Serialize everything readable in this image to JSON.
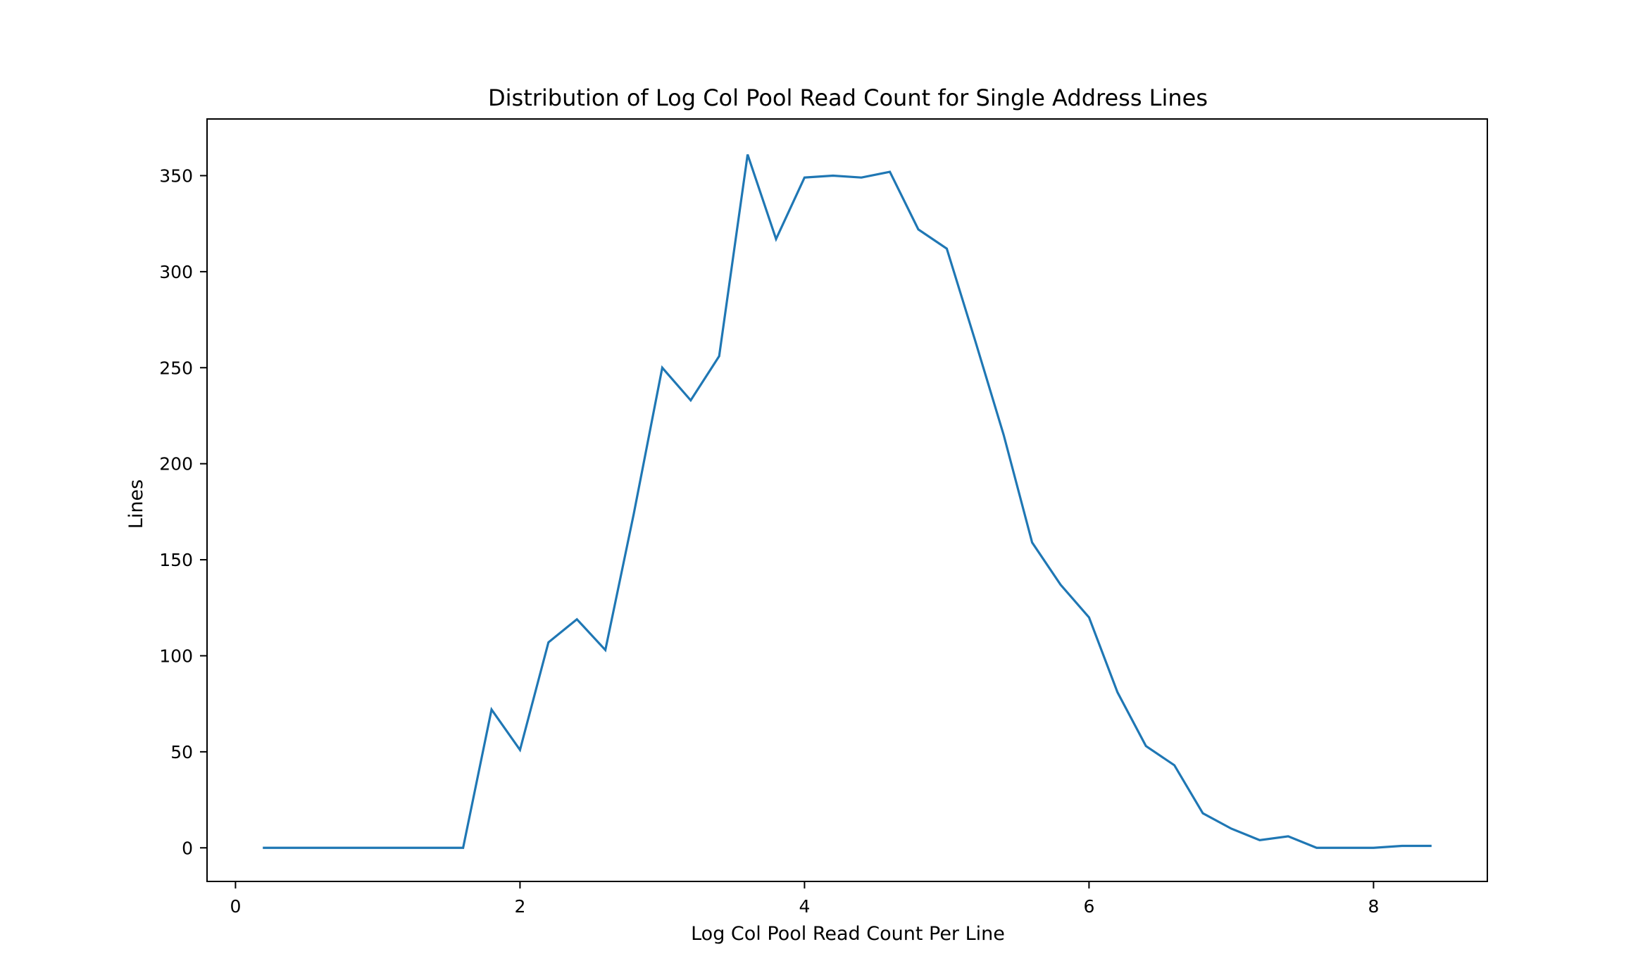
{
  "chart_data": {
    "type": "line",
    "title": "Distribution of Log Col Pool Read Count for Single Address Lines",
    "xlabel": "Log Col Pool Read Count Per Line",
    "ylabel": "Lines",
    "xlim": [
      -0.2,
      8.8
    ],
    "ylim": [
      -17.5,
      379.5
    ],
    "xticks": [
      0,
      2,
      4,
      6,
      8
    ],
    "yticks": [
      0,
      50,
      100,
      150,
      200,
      250,
      300,
      350
    ],
    "grid": false,
    "legend": "none",
    "series": [
      {
        "color": "#1f77b4",
        "x": [
          0.2,
          0.4,
          0.6,
          0.8,
          1.0,
          1.2,
          1.4,
          1.6,
          1.8,
          2.0,
          2.2,
          2.4,
          2.6,
          2.8,
          3.0,
          3.2,
          3.4,
          3.6,
          3.8,
          4.0,
          4.2,
          4.4,
          4.6,
          4.8,
          5.0,
          5.2,
          5.4,
          5.6,
          5.8,
          6.0,
          6.2,
          6.4,
          6.6,
          6.8,
          7.0,
          7.2,
          7.4,
          7.6,
          7.8,
          8.0,
          8.2,
          8.4
        ],
        "y": [
          0,
          0,
          0,
          0,
          0,
          0,
          0,
          0,
          72,
          51,
          107,
          119,
          103,
          174,
          250,
          233,
          256,
          361,
          317,
          349,
          350,
          349,
          352,
          322,
          312,
          264,
          215,
          159,
          137,
          120,
          81,
          53,
          43,
          18,
          10,
          4,
          6,
          0,
          0,
          0,
          1,
          1
        ]
      }
    ]
  }
}
